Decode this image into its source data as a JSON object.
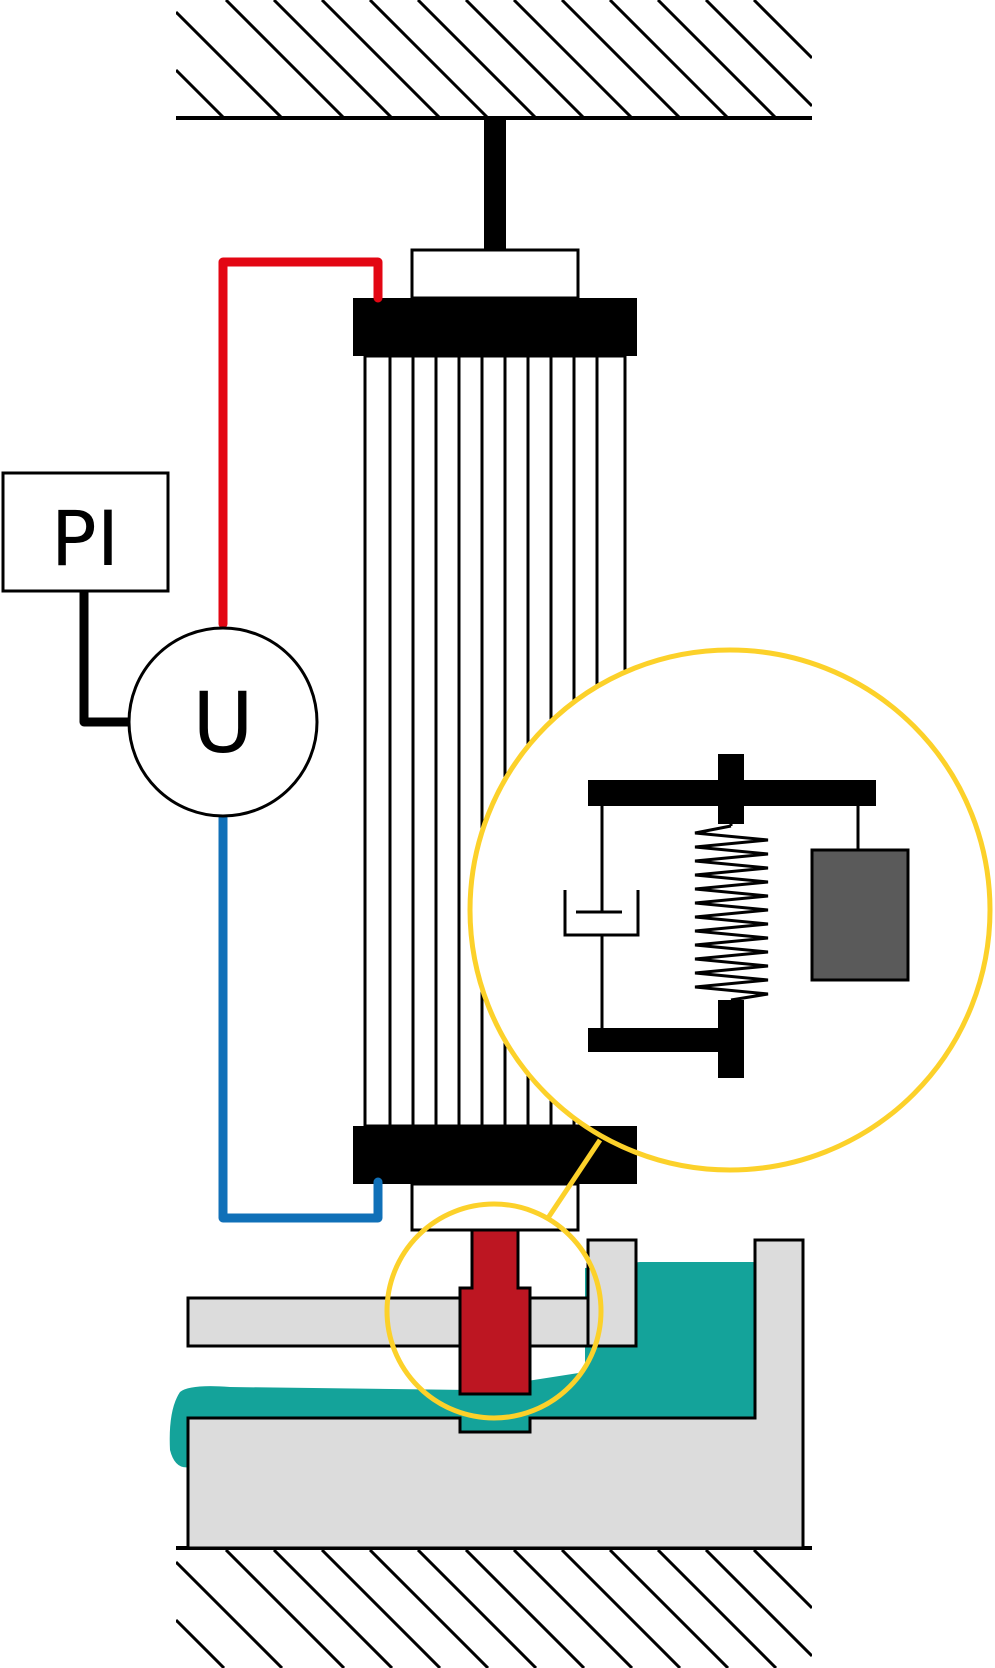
{
  "controller": {
    "label": "PI",
    "icon": "controller-box"
  },
  "voltage_source": {
    "label": "U",
    "icon": "voltage-source-circle"
  },
  "wires": {
    "positive_color": "#e30613",
    "negative_color": "#1070b8",
    "signal_color": "#000000"
  },
  "colors": {
    "yellow_highlight": "#fcd12a",
    "fluid": "#14a39a",
    "housing": "#dcdcdc",
    "needle": "#bd1622",
    "mass": "#5a5a5a"
  },
  "detail_view": {
    "elements": [
      "damper-icon",
      "spring-icon",
      "mass-icon"
    ]
  }
}
